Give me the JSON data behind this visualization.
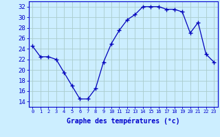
{
  "hours": [
    0,
    1,
    2,
    3,
    4,
    5,
    6,
    7,
    8,
    9,
    10,
    11,
    12,
    13,
    14,
    15,
    16,
    17,
    18,
    19,
    20,
    21,
    22,
    23
  ],
  "temperatures": [
    24.5,
    22.5,
    22.5,
    22.0,
    19.5,
    17.0,
    14.5,
    14.5,
    16.5,
    21.5,
    25.0,
    27.5,
    29.5,
    30.5,
    32.0,
    32.0,
    32.0,
    31.5,
    31.5,
    31.0,
    27.0,
    29.0,
    23.0,
    21.5
  ],
  "xlabel": "Graphe des températures (°c)",
  "ylim": [
    13,
    33
  ],
  "yticks": [
    14,
    16,
    18,
    20,
    22,
    24,
    26,
    28,
    30,
    32
  ],
  "xticks": [
    0,
    1,
    2,
    3,
    4,
    5,
    6,
    7,
    8,
    9,
    10,
    11,
    12,
    13,
    14,
    15,
    16,
    17,
    18,
    19,
    20,
    21,
    22,
    23
  ],
  "line_color": "#0000bb",
  "marker": "+",
  "marker_size": 4,
  "bg_color": "#cceeff",
  "grid_color": "#aacccc",
  "axis_label_color": "#0000cc",
  "tick_color": "#0000cc",
  "xlabel_fontsize": 7,
  "ytick_fontsize": 6.5,
  "xtick_fontsize": 5.0
}
